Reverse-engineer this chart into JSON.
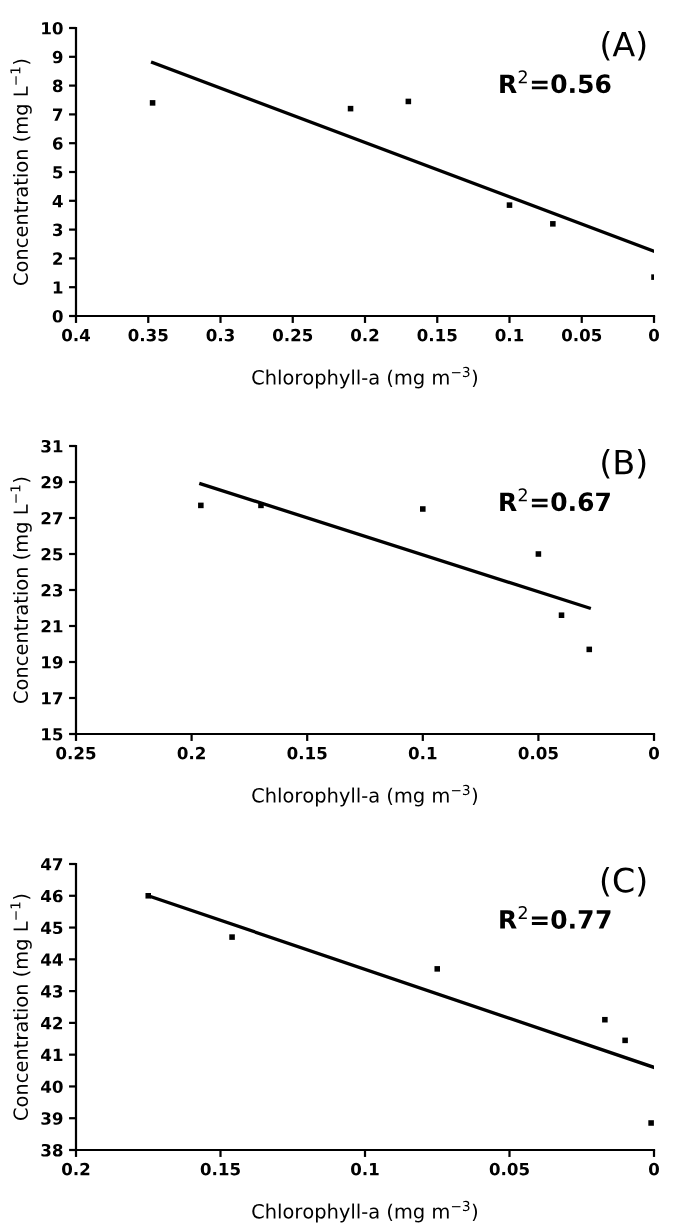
{
  "chart_data": [
    {
      "type": "scatter",
      "xlabel": "Chlorophyll-a (mg m$^{−3}$)",
      "ylabel": "Concentration (mg L$^{−1}$)",
      "xlim": [
        0.4,
        0
      ],
      "xticks": [
        0.4,
        0.35,
        0.3,
        0.25,
        0.2,
        0.15,
        0.1,
        0.05,
        0
      ],
      "ylim": [
        0,
        10
      ],
      "yticks": [
        0,
        1,
        2,
        3,
        4,
        5,
        6,
        7,
        8,
        9,
        10
      ],
      "grid": false,
      "legend": false,
      "annotations": [
        "(A)",
        "R$^{2}$=0.56"
      ],
      "series": [
        {
          "marker": "square",
          "color": "#000000",
          "x": [
            0.347,
            0.21,
            0.17,
            0.1,
            0.07,
            0.0
          ],
          "values": [
            7.4,
            7.2,
            7.45,
            3.85,
            3.2,
            1.35
          ]
        },
        {
          "type": "line",
          "marker": "none",
          "line_style": "solid",
          "color": "#000000",
          "x": [
            0.347,
            0.0
          ],
          "values": [
            8.8,
            2.25
          ]
        }
      ]
    },
    {
      "type": "scatter",
      "xlabel": "Chlorophyll-a (mg m$^{−3}$)",
      "ylabel": "Concentration (mg L$^{−1}$)",
      "xlim": [
        0.25,
        0
      ],
      "xticks": [
        0.25,
        0.2,
        0.15,
        0.1,
        0.05,
        0
      ],
      "ylim": [
        15,
        31
      ],
      "yticks": [
        15,
        17,
        19,
        21,
        23,
        25,
        27,
        29,
        31
      ],
      "grid": false,
      "legend": false,
      "annotations": [
        "(B)",
        "R$^{2}$=0.67"
      ],
      "series": [
        {
          "marker": "square",
          "color": "#000000",
          "x": [
            0.196,
            0.17,
            0.1,
            0.05,
            0.04,
            0.028
          ],
          "values": [
            27.7,
            27.7,
            27.5,
            25.0,
            21.6,
            19.7
          ]
        },
        {
          "type": "line",
          "marker": "none",
          "line_style": "solid",
          "color": "#000000",
          "x": [
            0.196,
            0.028
          ],
          "values": [
            28.9,
            22.0
          ]
        }
      ]
    },
    {
      "type": "scatter",
      "xlabel": "Chlorophyll-a (mg m$^{−3}$)",
      "ylabel": "Concentration (mg L$^{−1}$)",
      "xlim": [
        0.2,
        0
      ],
      "xticks": [
        0.2,
        0.15,
        0.1,
        0.05,
        0
      ],
      "ylim": [
        38,
        47
      ],
      "yticks": [
        38,
        39,
        40,
        41,
        42,
        43,
        44,
        45,
        46,
        47
      ],
      "grid": false,
      "legend": false,
      "annotations": [
        "(C)",
        "R$^{2}$=0.77"
      ],
      "series": [
        {
          "marker": "square",
          "color": "#000000",
          "x": [
            0.175,
            0.146,
            0.075,
            0.017,
            0.01,
            0.001
          ],
          "values": [
            46.0,
            44.7,
            43.7,
            42.1,
            41.45,
            38.85
          ]
        },
        {
          "type": "line",
          "marker": "none",
          "line_style": "solid",
          "color": "#000000",
          "x": [
            0.175,
            0.0
          ],
          "values": [
            46.0,
            40.6
          ]
        }
      ]
    }
  ]
}
